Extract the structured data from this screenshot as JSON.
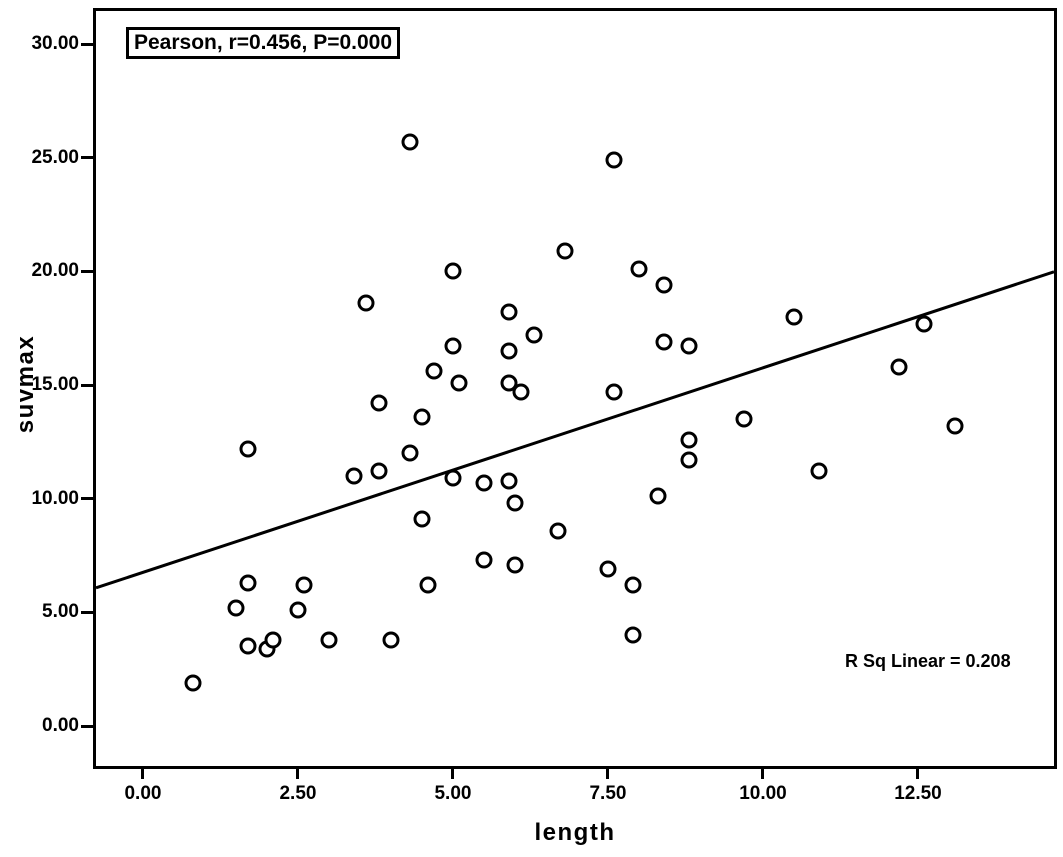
{
  "figure": {
    "background": "#ffffff",
    "ink_color": "#000000"
  },
  "chart_data": {
    "type": "scatter",
    "title": "",
    "xlabel": "length",
    "ylabel": "suvmax",
    "xlim": [
      -0.758,
      14.694
    ],
    "ylim": [
      -1.76,
      31.46
    ],
    "grid": false,
    "legend": "none",
    "x_ticks": [
      {
        "value": 0,
        "label": "0.00"
      },
      {
        "value": 2.5,
        "label": "2.50"
      },
      {
        "value": 5,
        "label": "5.00"
      },
      {
        "value": 7.5,
        "label": "7.50"
      },
      {
        "value": 10,
        "label": "10.00"
      },
      {
        "value": 12.5,
        "label": "12.50"
      }
    ],
    "y_ticks": [
      {
        "value": 0,
        "label": "0.00"
      },
      {
        "value": 5,
        "label": "5.00"
      },
      {
        "value": 10,
        "label": "10.00"
      },
      {
        "value": 15,
        "label": "15.00"
      },
      {
        "value": 20,
        "label": "20.00"
      },
      {
        "value": 25,
        "label": "25.00"
      },
      {
        "value": 30,
        "label": "30.00"
      }
    ],
    "annotations": {
      "pearson_box": "Pearson, r=0.456, P=0.000",
      "r_sq": "R Sq Linear = 0.208"
    },
    "regression_line": {
      "slope": 0.9,
      "intercept": 6.76
    },
    "marker": {
      "shape": "open-circle",
      "stroke": "#000000",
      "fill": "#ffffff"
    },
    "points": [
      [
        0.8,
        1.9
      ],
      [
        1.5,
        5.2
      ],
      [
        1.7,
        3.5
      ],
      [
        1.7,
        6.3
      ],
      [
        1.7,
        12.2
      ],
      [
        2.0,
        3.4
      ],
      [
        2.1,
        3.8
      ],
      [
        2.5,
        5.1
      ],
      [
        2.6,
        6.2
      ],
      [
        3.0,
        3.8
      ],
      [
        3.4,
        11.0
      ],
      [
        3.6,
        18.6
      ],
      [
        3.8,
        11.2
      ],
      [
        3.8,
        14.2
      ],
      [
        4.0,
        3.8
      ],
      [
        4.3,
        12.0
      ],
      [
        4.3,
        25.7
      ],
      [
        4.5,
        9.1
      ],
      [
        4.5,
        13.6
      ],
      [
        4.6,
        6.2
      ],
      [
        4.7,
        15.6
      ],
      [
        5.0,
        10.9
      ],
      [
        5.0,
        16.7
      ],
      [
        5.0,
        20.0
      ],
      [
        5.1,
        15.1
      ],
      [
        5.5,
        7.3
      ],
      [
        5.5,
        10.7
      ],
      [
        5.9,
        10.8
      ],
      [
        5.9,
        15.1
      ],
      [
        5.9,
        16.5
      ],
      [
        5.9,
        18.2
      ],
      [
        6.0,
        7.1
      ],
      [
        6.0,
        9.8
      ],
      [
        6.1,
        14.7
      ],
      [
        6.3,
        17.2
      ],
      [
        6.7,
        8.6
      ],
      [
        6.8,
        20.9
      ],
      [
        7.5,
        6.9
      ],
      [
        7.6,
        14.7
      ],
      [
        7.6,
        24.9
      ],
      [
        7.9,
        4.0
      ],
      [
        7.9,
        6.2
      ],
      [
        8.0,
        20.1
      ],
      [
        8.3,
        10.1
      ],
      [
        8.4,
        16.9
      ],
      [
        8.4,
        19.4
      ],
      [
        8.8,
        11.7
      ],
      [
        8.8,
        12.6
      ],
      [
        8.8,
        16.7
      ],
      [
        9.7,
        13.5
      ],
      [
        10.5,
        18.0
      ],
      [
        10.9,
        11.2
      ],
      [
        12.2,
        15.8
      ],
      [
        12.6,
        17.7
      ],
      [
        13.1,
        13.2
      ]
    ]
  }
}
